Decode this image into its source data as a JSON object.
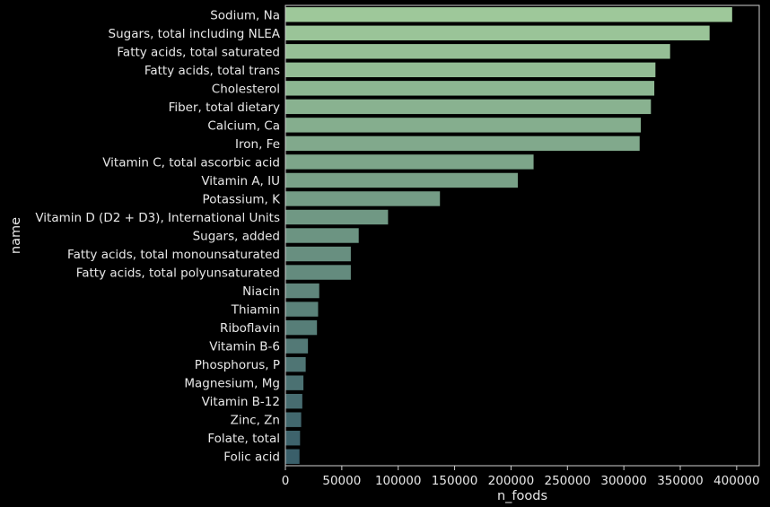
{
  "chart_data": {
    "type": "bar",
    "orientation": "horizontal",
    "xlabel": "n_foods",
    "ylabel": "name",
    "xlim": [
      0,
      420000
    ],
    "xticks": [
      0,
      50000,
      100000,
      150000,
      200000,
      250000,
      300000,
      350000,
      400000
    ],
    "xtick_labels": [
      "0",
      "50000",
      "100000",
      "150000",
      "200000",
      "250000",
      "300000",
      "350000",
      "400000"
    ],
    "grid": false,
    "color_gradient": [
      "#9ec89a",
      "#3a5f6a"
    ],
    "categories": [
      "Sodium, Na",
      "Sugars, total including NLEA",
      "Fatty acids, total saturated",
      "Fatty acids, total trans",
      "Cholesterol",
      "Fiber, total dietary",
      "Calcium, Ca",
      "Iron, Fe",
      "Vitamin C, total ascorbic acid",
      "Vitamin A, IU",
      "Potassium, K",
      "Vitamin D (D2 + D3), International Units",
      "Sugars, added",
      "Fatty acids, total monounsaturated",
      "Fatty acids, total polyunsaturated",
      "Niacin",
      "Thiamin",
      "Riboflavin",
      "Vitamin B-6",
      "Phosphorus, P",
      "Magnesium, Mg",
      "Vitamin B-12",
      "Zinc, Zn",
      "Folate, total",
      "Folic acid"
    ],
    "values": [
      396000,
      376000,
      341000,
      328000,
      327000,
      324000,
      315000,
      314000,
      220000,
      206000,
      137000,
      91000,
      65000,
      58000,
      58000,
      30000,
      29000,
      28000,
      20000,
      18000,
      16000,
      15000,
      14000,
      13000,
      12500
    ]
  }
}
